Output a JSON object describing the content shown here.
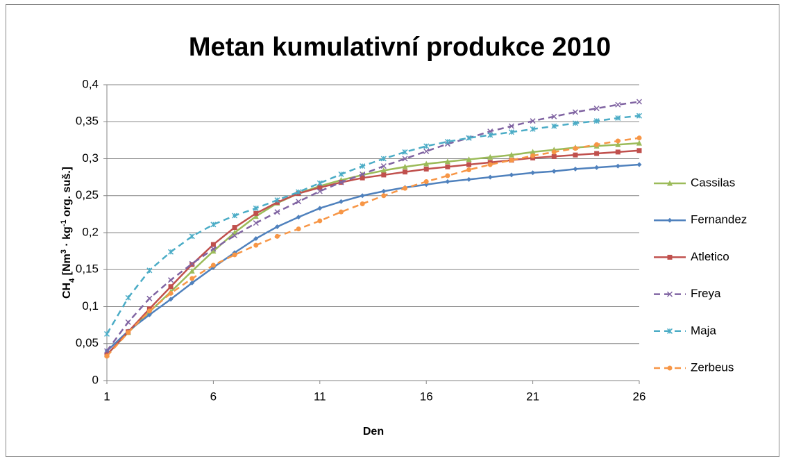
{
  "chart_data": {
    "type": "line",
    "title": "Metan kumulativní produkce 2010",
    "x_label": "Den",
    "y_label": [
      "CH",
      "4",
      " [Nm",
      "3",
      " · kg",
      "-1",
      " org. suš.]"
    ],
    "x": [
      1,
      2,
      3,
      4,
      5,
      6,
      7,
      8,
      9,
      10,
      11,
      12,
      13,
      14,
      15,
      16,
      17,
      18,
      19,
      20,
      21,
      22,
      23,
      24,
      25,
      26
    ],
    "xlim": [
      1,
      26
    ],
    "xticks": [
      1,
      6,
      11,
      16,
      21,
      26
    ],
    "ylim": [
      0,
      0.4
    ],
    "yticks": [
      0,
      {
        "value": 0.05,
        "label": "0,05"
      },
      {
        "value": 0.1,
        "label": "0,1"
      },
      {
        "value": 0.15,
        "label": "0,15"
      },
      {
        "value": 0.2,
        "label": "0,2"
      },
      {
        "value": 0.25,
        "label": "0,25"
      },
      {
        "value": 0.3,
        "label": "0,3"
      },
      {
        "value": 0.35,
        "label": "0,35"
      },
      {
        "value": 0.4,
        "label": "0,4"
      }
    ],
    "grid": true,
    "legend": "right",
    "series": [
      {
        "name": "Cassilas",
        "color": "#9bbb59",
        "marker": "triangle",
        "dashed": false,
        "values": [
          0.035,
          0.065,
          0.093,
          0.12,
          0.148,
          0.175,
          0.2,
          0.222,
          0.24,
          0.253,
          0.263,
          0.271,
          0.278,
          0.284,
          0.289,
          0.293,
          0.296,
          0.299,
          0.302,
          0.305,
          0.309,
          0.312,
          0.315,
          0.317,
          0.319,
          0.321
        ]
      },
      {
        "name": "Fernandez",
        "color": "#4f81bd",
        "marker": "diamond",
        "dashed": false,
        "values": [
          0.04,
          0.067,
          0.089,
          0.11,
          0.132,
          0.153,
          0.173,
          0.192,
          0.208,
          0.221,
          0.233,
          0.242,
          0.25,
          0.256,
          0.261,
          0.265,
          0.269,
          0.272,
          0.275,
          0.278,
          0.281,
          0.283,
          0.286,
          0.288,
          0.29,
          0.292
        ]
      },
      {
        "name": "Atletico",
        "color": "#c0504d",
        "marker": "square",
        "dashed": false,
        "values": [
          0.035,
          0.066,
          0.097,
          0.127,
          0.157,
          0.184,
          0.207,
          0.226,
          0.241,
          0.253,
          0.261,
          0.268,
          0.274,
          0.278,
          0.282,
          0.286,
          0.289,
          0.292,
          0.295,
          0.298,
          0.301,
          0.303,
          0.305,
          0.307,
          0.309,
          0.311
        ]
      },
      {
        "name": "Freya",
        "color": "#8064a2",
        "marker": "x",
        "dashed": true,
        "values": [
          0.04,
          0.079,
          0.111,
          0.136,
          0.158,
          0.178,
          0.196,
          0.213,
          0.228,
          0.242,
          0.256,
          0.268,
          0.279,
          0.29,
          0.3,
          0.31,
          0.32,
          0.328,
          0.337,
          0.344,
          0.351,
          0.357,
          0.363,
          0.368,
          0.373,
          0.377
        ]
      },
      {
        "name": "Maja",
        "color": "#4bacc6",
        "marker": "star",
        "dashed": true,
        "values": [
          0.063,
          0.112,
          0.149,
          0.174,
          0.195,
          0.211,
          0.223,
          0.233,
          0.244,
          0.255,
          0.267,
          0.279,
          0.29,
          0.3,
          0.309,
          0.317,
          0.323,
          0.328,
          0.332,
          0.336,
          0.34,
          0.344,
          0.348,
          0.351,
          0.355,
          0.358
        ]
      },
      {
        "name": "Zerbeus",
        "color": "#f79646",
        "marker": "circle",
        "dashed": true,
        "values": [
          0.033,
          0.065,
          0.094,
          0.118,
          0.138,
          0.156,
          0.17,
          0.183,
          0.195,
          0.205,
          0.216,
          0.228,
          0.239,
          0.25,
          0.26,
          0.269,
          0.277,
          0.285,
          0.292,
          0.298,
          0.304,
          0.309,
          0.314,
          0.319,
          0.324,
          0.328
        ]
      }
    ]
  }
}
